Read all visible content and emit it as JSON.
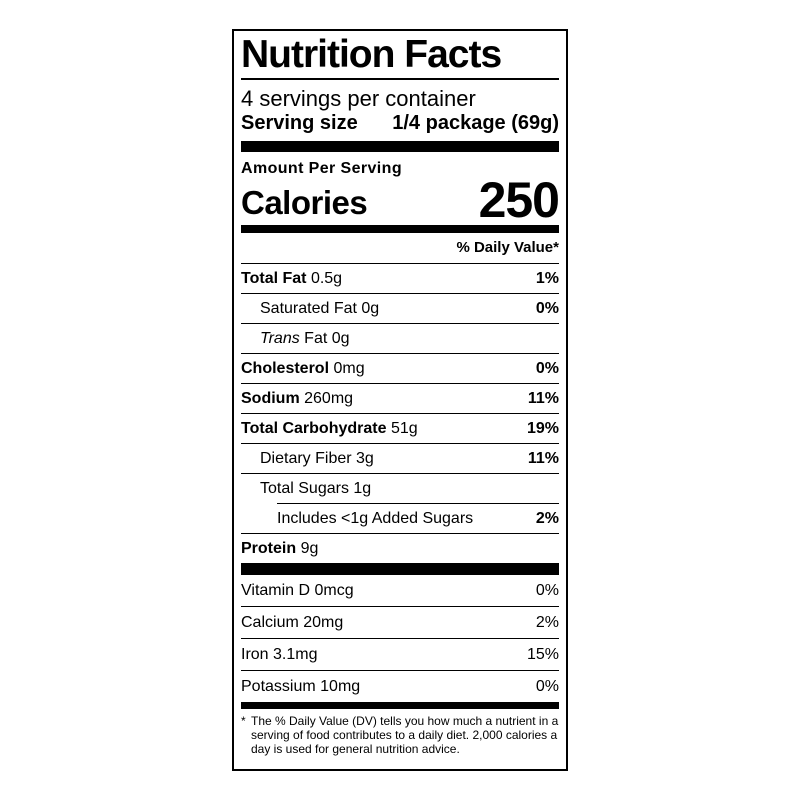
{
  "colors": {
    "ink": "#000000",
    "background": "#ffffff"
  },
  "label": {
    "title": "Nutrition Facts",
    "servings_per_container": "4 servings per container",
    "serving_size_label": "Serving size",
    "serving_size_value": "1/4 package (69g)",
    "amount_per_serving": "Amount Per Serving",
    "calories_label": "Calories",
    "calories_value": "250",
    "daily_value_header": "% Daily Value*",
    "rows": [
      {
        "label": "Total Fat",
        "value": "0.5g",
        "dv": "1%"
      },
      {
        "label": "Saturated Fat",
        "value": "0g",
        "dv": "0%"
      },
      {
        "label_italic": "Trans",
        "label": "Fat",
        "value": "0g",
        "dv": ""
      },
      {
        "label": "Cholesterol",
        "value": "0mg",
        "dv": "0%"
      },
      {
        "label": "Sodium",
        "value": "260mg",
        "dv": "11%"
      },
      {
        "label": "Total Carbohydrate",
        "value": "51g",
        "dv": "19%"
      },
      {
        "label": "Dietary Fiber",
        "value": "3g",
        "dv": "11%"
      },
      {
        "label": "Total Sugars",
        "value": "1g",
        "dv": ""
      },
      {
        "label": "Includes <1g Added Sugars",
        "value": "",
        "dv": "2%"
      },
      {
        "label": "Protein",
        "value": "9g",
        "dv": ""
      }
    ],
    "vitamins": [
      {
        "label": "Vitamin D",
        "value": "0mcg",
        "dv": "0%"
      },
      {
        "label": "Calcium",
        "value": "20mg",
        "dv": "2%"
      },
      {
        "label": "Iron",
        "value": "3.1mg",
        "dv": "15%"
      },
      {
        "label": "Potassium",
        "value": "10mg",
        "dv": "0%"
      }
    ],
    "footnote_asterisk": "*",
    "footnote_text": "The % Daily Value (DV) tells you how much a nutrient in a serving of food contributes to a daily diet. 2,000 calories a day is used for general nutrition advice."
  }
}
